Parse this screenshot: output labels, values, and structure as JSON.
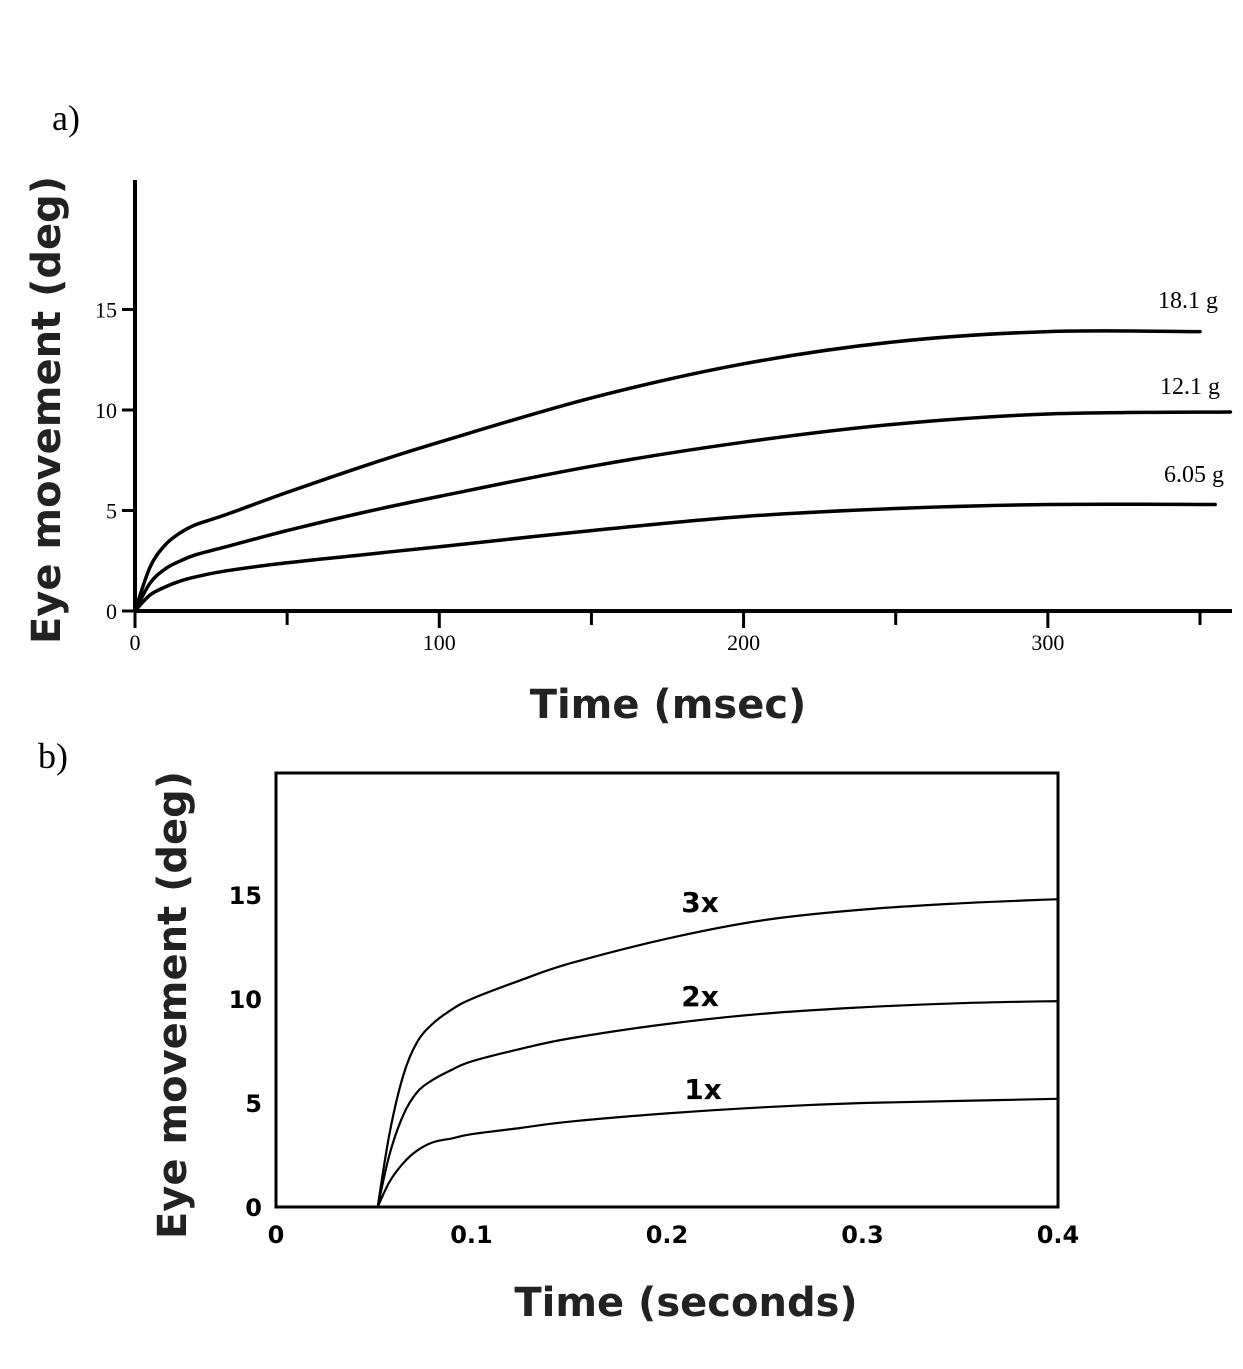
{
  "panels": {
    "a": {
      "label": "a)"
    },
    "b": {
      "label": "b)"
    }
  },
  "chart_data": [
    {
      "type": "line",
      "panel": "a)",
      "xlabel": "Time (msec)",
      "ylabel": "Eye movement (deg)",
      "xlim": [
        0,
        360
      ],
      "ylim": [
        0,
        21
      ],
      "x_ticks": [
        0,
        100,
        200,
        300
      ],
      "x_minor_ticks": [
        50,
        150,
        250,
        350
      ],
      "y_ticks": [
        0,
        5,
        10,
        15
      ],
      "grid": false,
      "series": [
        {
          "name": "18.1 g",
          "x": [
            0,
            5,
            10,
            15,
            20,
            30,
            50,
            75,
            100,
            150,
            200,
            250,
            300,
            350
          ],
          "y": [
            0,
            2.2,
            3.3,
            3.9,
            4.3,
            4.8,
            5.9,
            7.2,
            8.4,
            10.6,
            12.3,
            13.4,
            13.9,
            13.9
          ]
        },
        {
          "name": "12.1 g",
          "x": [
            0,
            5,
            10,
            15,
            20,
            30,
            50,
            75,
            100,
            150,
            200,
            250,
            300,
            360
          ],
          "y": [
            0,
            1.4,
            2.1,
            2.5,
            2.8,
            3.2,
            4.0,
            4.9,
            5.7,
            7.2,
            8.4,
            9.3,
            9.8,
            9.9
          ]
        },
        {
          "name": "6.05 g",
          "x": [
            0,
            5,
            10,
            15,
            20,
            30,
            50,
            75,
            100,
            150,
            200,
            250,
            300,
            355
          ],
          "y": [
            0,
            0.8,
            1.2,
            1.5,
            1.7,
            2.0,
            2.4,
            2.8,
            3.2,
            4.0,
            4.7,
            5.1,
            5.3,
            5.3
          ]
        }
      ]
    },
    {
      "type": "line",
      "panel": "b)",
      "xlabel": "Time (seconds)",
      "ylabel": "Eye movement (deg)",
      "xlim": [
        0,
        0.4
      ],
      "ylim": [
        0,
        20
      ],
      "x_ticks": [
        "0",
        "0.1",
        "0.2",
        "0.3",
        "0.4"
      ],
      "y_ticks": [
        0,
        5,
        10,
        15
      ],
      "grid": false,
      "series": [
        {
          "name": "3x",
          "x": [
            0.052,
            0.058,
            0.065,
            0.072,
            0.08,
            0.09,
            0.1,
            0.125,
            0.15,
            0.2,
            0.25,
            0.3,
            0.35,
            0.4
          ],
          "y": [
            0,
            3.5,
            6.3,
            7.9,
            8.8,
            9.5,
            10.0,
            10.9,
            11.7,
            12.9,
            13.8,
            14.3,
            14.6,
            14.8
          ]
        },
        {
          "name": "2x",
          "x": [
            0.052,
            0.058,
            0.065,
            0.072,
            0.08,
            0.09,
            0.1,
            0.125,
            0.15,
            0.2,
            0.25,
            0.3,
            0.35,
            0.4
          ],
          "y": [
            0,
            2.5,
            4.4,
            5.5,
            6.1,
            6.6,
            7.0,
            7.6,
            8.1,
            8.8,
            9.3,
            9.6,
            9.8,
            9.9
          ]
        },
        {
          "name": "1x",
          "x": [
            0.052,
            0.058,
            0.065,
            0.072,
            0.08,
            0.09,
            0.1,
            0.125,
            0.15,
            0.2,
            0.25,
            0.3,
            0.35,
            0.4
          ],
          "y": [
            0,
            1.2,
            2.1,
            2.7,
            3.1,
            3.3,
            3.5,
            3.8,
            4.1,
            4.5,
            4.8,
            5.0,
            5.1,
            5.2
          ]
        }
      ]
    }
  ]
}
